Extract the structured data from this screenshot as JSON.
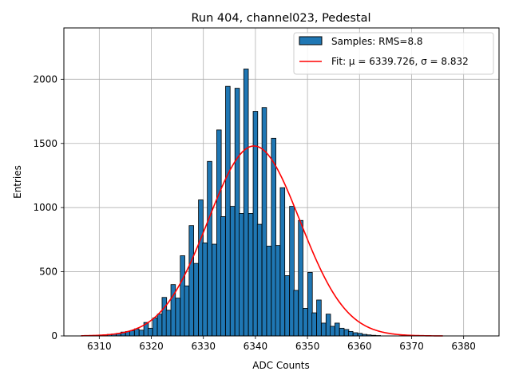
{
  "chart_data": {
    "type": "bar",
    "title": "Run 404, channel023, Pedestal",
    "xlabel": "ADC Counts",
    "ylabel": "Entries",
    "xlim": [
      6303.2,
      6386.8
    ],
    "ylim": [
      0,
      2400
    ],
    "x_ticks": [
      6310,
      6320,
      6330,
      6340,
      6350,
      6360,
      6370,
      6380
    ],
    "y_ticks": [
      0,
      500,
      1000,
      1500,
      2000
    ],
    "grid": true,
    "legend_position": "top-right",
    "colors": {
      "bars": "#1f77b4",
      "fit": "#ff0000",
      "edge": "#000000",
      "grid": "#b0b0b0"
    },
    "series": [
      {
        "name": "Samples: RMS=8.8",
        "type": "histogram",
        "bin_width": 0.877,
        "bins": [
          {
            "x": 6310.2,
            "y": 3
          },
          {
            "x": 6311.1,
            "y": 8
          },
          {
            "x": 6312.0,
            "y": 12
          },
          {
            "x": 6312.8,
            "y": 15
          },
          {
            "x": 6313.7,
            "y": 20
          },
          {
            "x": 6314.6,
            "y": 30
          },
          {
            "x": 6315.5,
            "y": 35
          },
          {
            "x": 6316.3,
            "y": 40
          },
          {
            "x": 6317.2,
            "y": 55
          },
          {
            "x": 6318.1,
            "y": 45
          },
          {
            "x": 6319.0,
            "y": 105
          },
          {
            "x": 6319.8,
            "y": 60
          },
          {
            "x": 6320.7,
            "y": 140
          },
          {
            "x": 6321.6,
            "y": 170
          },
          {
            "x": 6322.5,
            "y": 300
          },
          {
            "x": 6323.3,
            "y": 200
          },
          {
            "x": 6324.2,
            "y": 400
          },
          {
            "x": 6325.1,
            "y": 295
          },
          {
            "x": 6326.0,
            "y": 625
          },
          {
            "x": 6326.8,
            "y": 390
          },
          {
            "x": 6327.7,
            "y": 860
          },
          {
            "x": 6328.6,
            "y": 565
          },
          {
            "x": 6329.5,
            "y": 1060
          },
          {
            "x": 6330.3,
            "y": 725
          },
          {
            "x": 6331.2,
            "y": 1360
          },
          {
            "x": 6332.1,
            "y": 715
          },
          {
            "x": 6333.0,
            "y": 1605
          },
          {
            "x": 6333.8,
            "y": 930
          },
          {
            "x": 6334.7,
            "y": 1945
          },
          {
            "x": 6335.6,
            "y": 1010
          },
          {
            "x": 6336.5,
            "y": 1930
          },
          {
            "x": 6337.3,
            "y": 955
          },
          {
            "x": 6338.2,
            "y": 2080
          },
          {
            "x": 6339.1,
            "y": 955
          },
          {
            "x": 6340.0,
            "y": 1750
          },
          {
            "x": 6340.8,
            "y": 870
          },
          {
            "x": 6341.7,
            "y": 1780
          },
          {
            "x": 6342.6,
            "y": 700
          },
          {
            "x": 6343.5,
            "y": 1540
          },
          {
            "x": 6344.3,
            "y": 705
          },
          {
            "x": 6345.2,
            "y": 1155
          },
          {
            "x": 6346.1,
            "y": 470
          },
          {
            "x": 6347.0,
            "y": 1010
          },
          {
            "x": 6347.8,
            "y": 355
          },
          {
            "x": 6348.7,
            "y": 900
          },
          {
            "x": 6349.6,
            "y": 215
          },
          {
            "x": 6350.5,
            "y": 495
          },
          {
            "x": 6351.3,
            "y": 180
          },
          {
            "x": 6352.2,
            "y": 280
          },
          {
            "x": 6353.1,
            "y": 100
          },
          {
            "x": 6354.0,
            "y": 170
          },
          {
            "x": 6354.8,
            "y": 75
          },
          {
            "x": 6355.7,
            "y": 100
          },
          {
            "x": 6356.6,
            "y": 60
          },
          {
            "x": 6357.5,
            "y": 50
          },
          {
            "x": 6358.3,
            "y": 35
          },
          {
            "x": 6359.2,
            "y": 25
          },
          {
            "x": 6360.1,
            "y": 20
          },
          {
            "x": 6361.0,
            "y": 12
          },
          {
            "x": 6361.8,
            "y": 8
          },
          {
            "x": 6362.7,
            "y": 5
          },
          {
            "x": 6363.6,
            "y": 3
          }
        ]
      },
      {
        "name": "Fit: μ = 6339.726, σ = 8.832",
        "type": "line",
        "model": "gaussian",
        "mu": 6339.726,
        "sigma": 8.832,
        "amplitude": 1480,
        "x_range": [
          6306.5,
          6376.0
        ]
      }
    ]
  }
}
